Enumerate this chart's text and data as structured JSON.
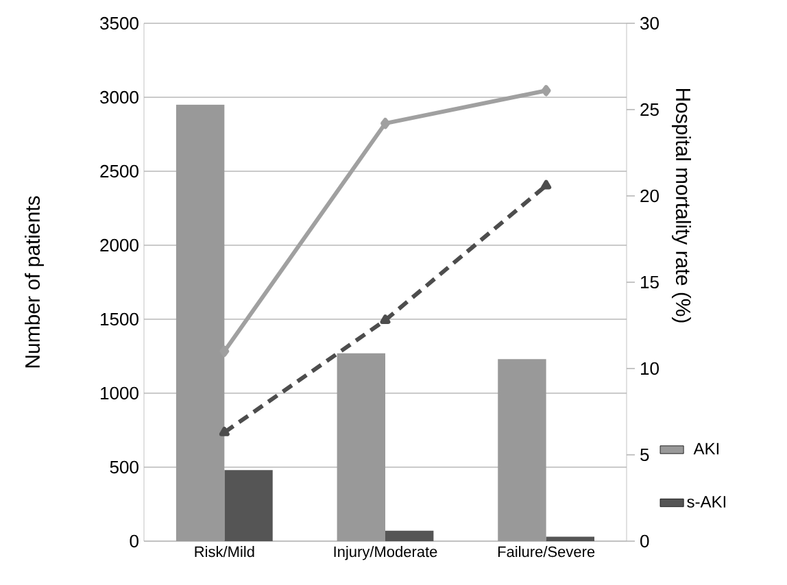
{
  "chart_data": {
    "type": "bar",
    "ylabel": "Number of patients",
    "y2label": "Hospital mortality rate (%)",
    "categories": [
      "Risk/Mild",
      "Injury/Moderate",
      "Failure/Severe"
    ],
    "series": [
      {
        "name": "AKI",
        "color": "#999999",
        "values": [
          2950,
          1270,
          1230
        ]
      },
      {
        "name": "s-AKI",
        "color": "#555555",
        "values": [
          480,
          70,
          30
        ]
      },
      {
        "type": "line",
        "axis": "y2",
        "color": "#a0a0a0",
        "marker": "diamond",
        "line_style": "solid",
        "values": [
          11.0,
          24.2,
          26.1
        ]
      },
      {
        "type": "line",
        "axis": "y2",
        "color": "#4d4d4d",
        "marker": "triangle",
        "line_style": "dashed",
        "values": [
          6.3,
          12.8,
          20.6
        ]
      }
    ],
    "ylim": [
      0,
      3500
    ],
    "yticks": [
      0,
      500,
      1000,
      1500,
      2000,
      2500,
      3000,
      3500
    ],
    "y2lim": [
      0,
      30
    ],
    "y2ticks": [
      0,
      5,
      10,
      15,
      20,
      25,
      30
    ],
    "grid": "y",
    "legend": "right"
  }
}
